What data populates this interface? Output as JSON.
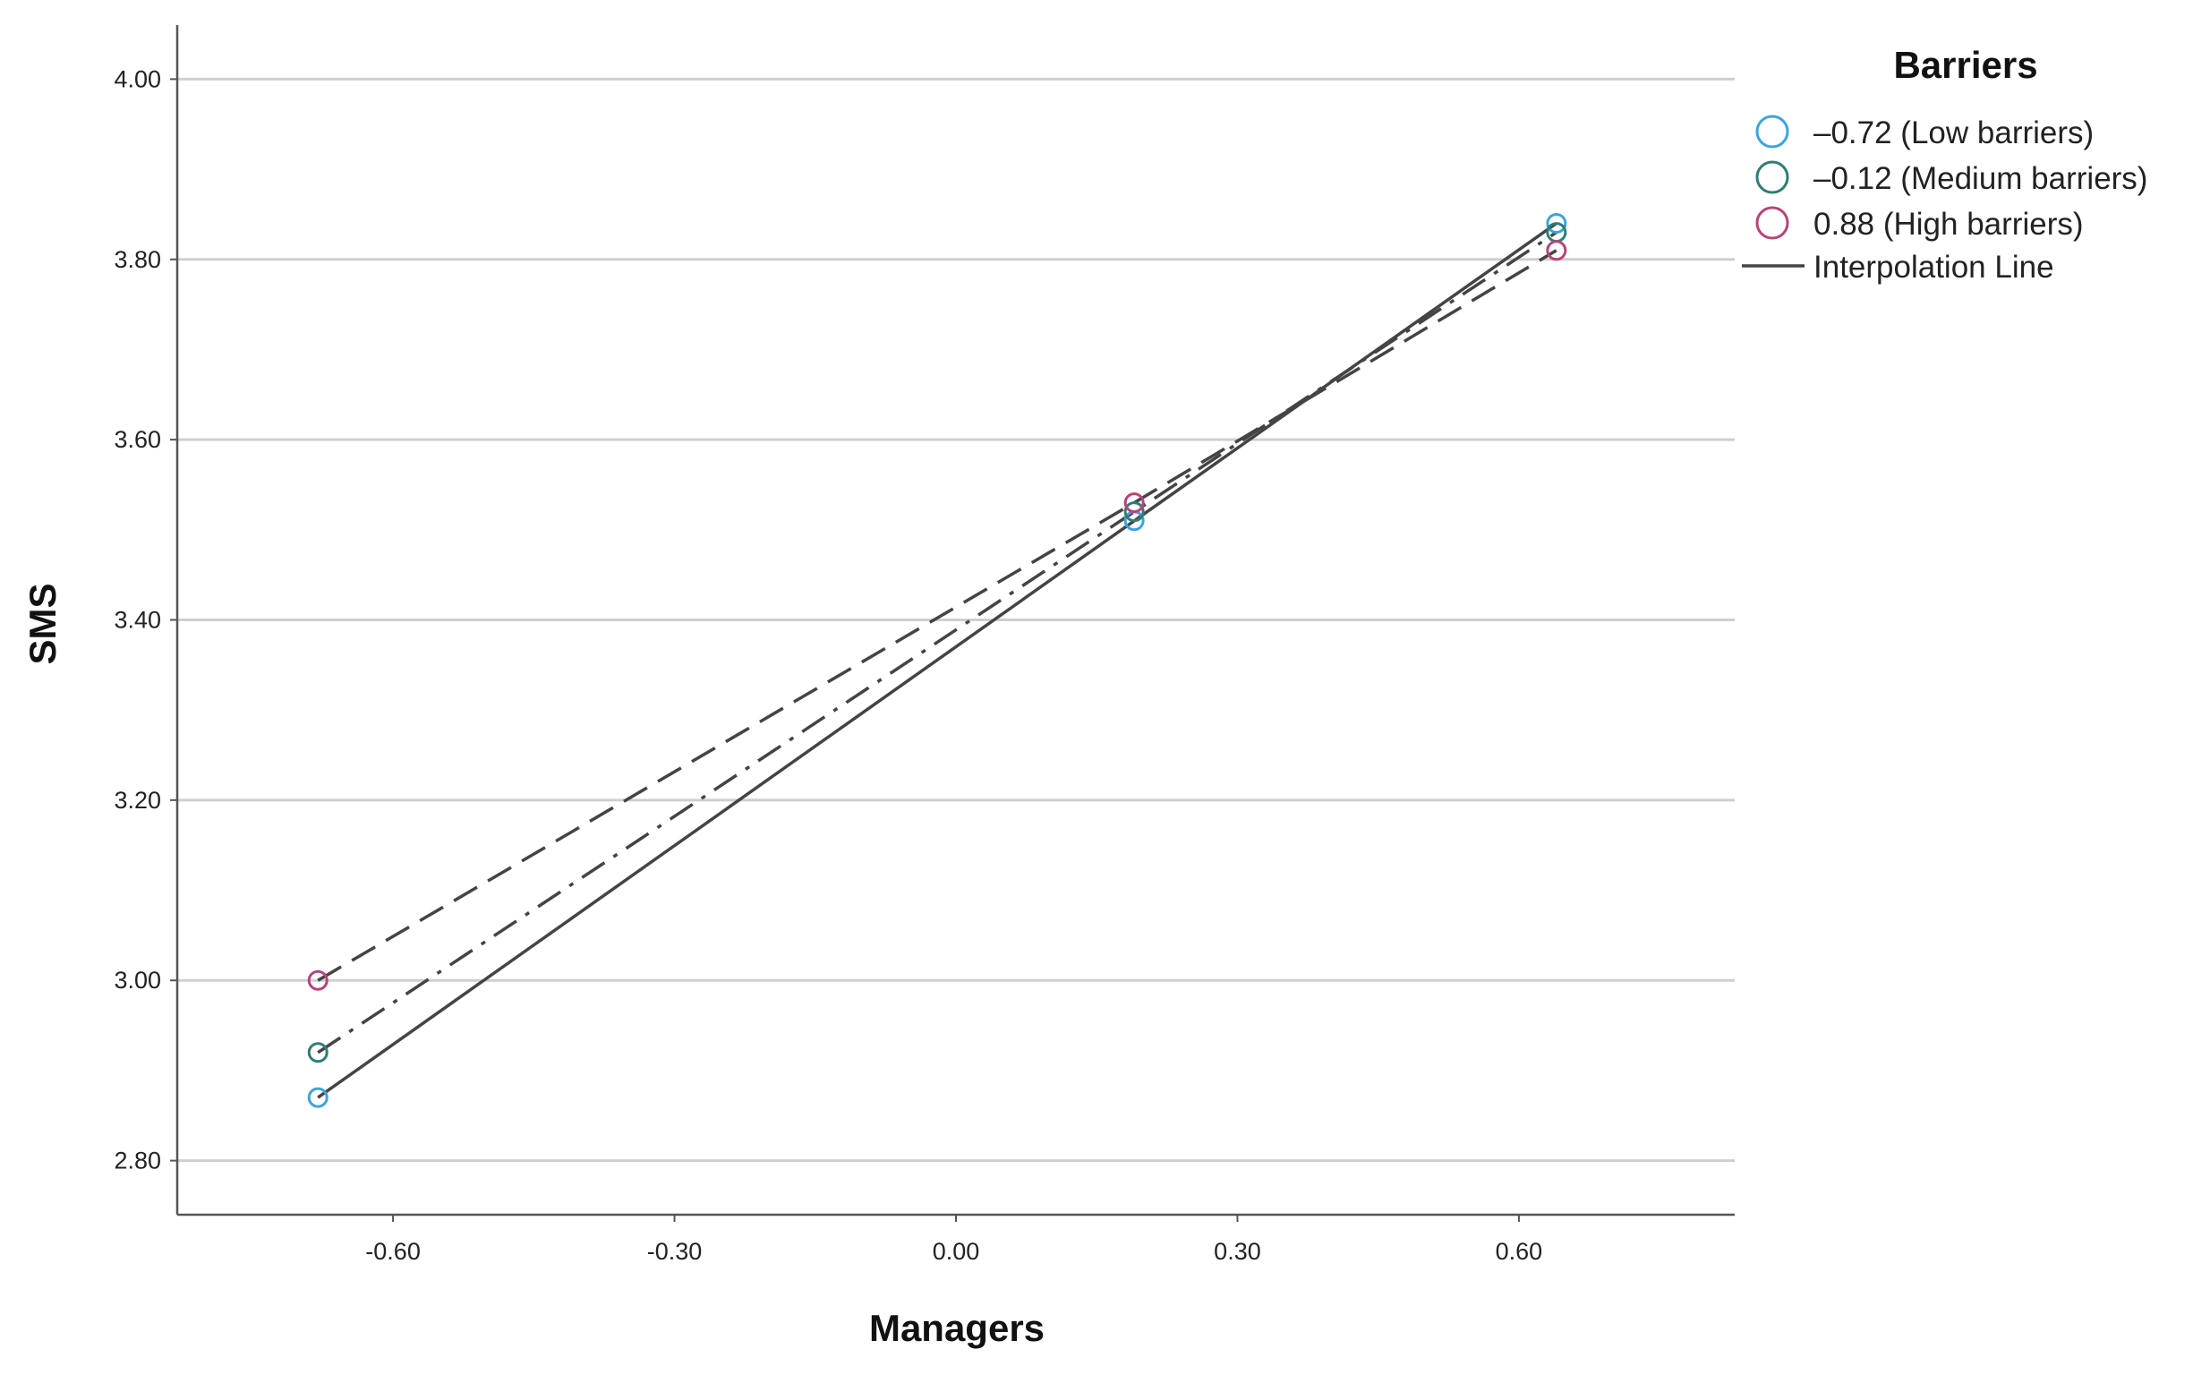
{
  "chart_data": {
    "type": "line",
    "title": "",
    "xlabel": "Managers",
    "ylabel": "SMS",
    "xlim": [
      -0.83,
      0.83
    ],
    "ylim": [
      2.74,
      4.06
    ],
    "xticks": [
      "-0.60",
      "-0.30",
      "0.00",
      "0.30",
      "0.60"
    ],
    "xtick_values": [
      -0.6,
      -0.3,
      0.0,
      0.3,
      0.6
    ],
    "yticks": [
      "2.80",
      "3.00",
      "3.20",
      "3.40",
      "3.60",
      "3.80",
      "4.00"
    ],
    "ytick_values": [
      2.8,
      3.0,
      3.2,
      3.4,
      3.6,
      3.8,
      4.0
    ],
    "grid": "horizontal",
    "legend": {
      "title": "Barriers",
      "placement": "top-right, outside plot",
      "interpolation_label": "Interpolation Line"
    },
    "x": [
      -0.68,
      0.19,
      0.64
    ],
    "series": [
      {
        "name": "–0.72 (Low barriers)",
        "values": [
          2.87,
          3.51,
          3.84
        ],
        "color": "#3ba4dc",
        "dash": "solid"
      },
      {
        "name": "–0.12 (Medium barriers)",
        "values": [
          2.92,
          3.52,
          3.83
        ],
        "color": "#2e7d76",
        "dash": "dashdot"
      },
      {
        "name": "0.88 (High barriers)",
        "values": [
          3.0,
          3.53,
          3.81
        ],
        "color": "#b5457a",
        "dash": "dashed"
      }
    ],
    "line_color": "#444444"
  }
}
